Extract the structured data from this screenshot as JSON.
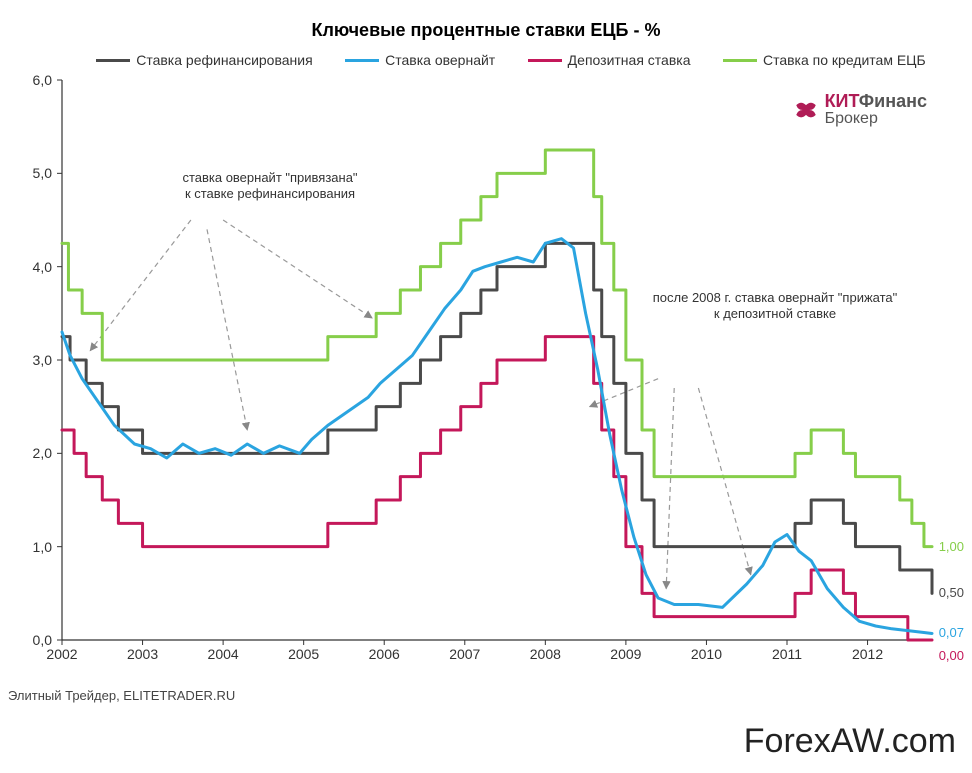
{
  "title": "Ключевые процентные ставки ЕЦБ - %",
  "legend": {
    "refi": {
      "label": "Ставка рефинансирования",
      "color": "#4a4a4a"
    },
    "overnight": {
      "label": "Ставка овернайт",
      "color": "#2aa4e0"
    },
    "deposit": {
      "label": "Депозитная ставка",
      "color": "#c4185a"
    },
    "lending": {
      "label": "Ставка по кредитам ЕЦБ",
      "color": "#86ce4a"
    }
  },
  "logo": {
    "kit": "КИТ",
    "finans": "Финанс",
    "broker": "Брокер",
    "icon_color": "#b01c56"
  },
  "annotations": {
    "a1": "ставка овернайт \"привязана\"\nк ставке рефинансирования",
    "a2": "после 2008 г. ставка овернайт \"прижата\"\nк депозитной ставке"
  },
  "end_labels": {
    "lending": {
      "text": "1,00",
      "color": "#86ce4a"
    },
    "refi": {
      "text": "0,50",
      "color": "#4a4a4a"
    },
    "overnight": {
      "text": "0,07",
      "color": "#2aa4e0"
    },
    "deposit": {
      "text": "0,00",
      "color": "#c4185a"
    }
  },
  "footer_left": "Элитный Трейдер, ELITETRADER.RU",
  "footer_right": "ForexAW.com",
  "chart": {
    "type": "line",
    "background_color": "#ffffff",
    "axis_color": "#333333",
    "grid_color": "#cccccc",
    "line_width": 3,
    "title_fontsize": 18,
    "label_fontsize": 14,
    "x_domain": [
      2002.0,
      2012.8
    ],
    "y_domain": [
      0.0,
      6.0
    ],
    "y_ticks": [
      "0,0",
      "1,0",
      "2,0",
      "3,0",
      "4,0",
      "5,0",
      "6,0"
    ],
    "y_tick_step": 1.0,
    "x_ticks": [
      "2002",
      "2003",
      "2004",
      "2005",
      "2006",
      "2007",
      "2008",
      "2009",
      "2010",
      "2011",
      "2012"
    ],
    "series": {
      "lending": {
        "color": "#86ce4a",
        "points": [
          [
            2002.0,
            4.25
          ],
          [
            2002.08,
            3.75
          ],
          [
            2002.25,
            3.5
          ],
          [
            2002.5,
            3.0
          ],
          [
            2005.0,
            3.0
          ],
          [
            2005.3,
            3.25
          ],
          [
            2005.9,
            3.5
          ],
          [
            2006.2,
            3.75
          ],
          [
            2006.45,
            4.0
          ],
          [
            2006.7,
            4.25
          ],
          [
            2006.95,
            4.5
          ],
          [
            2007.2,
            4.75
          ],
          [
            2007.4,
            5.0
          ],
          [
            2007.8,
            5.0
          ],
          [
            2008.0,
            5.25
          ],
          [
            2008.4,
            5.25
          ],
          [
            2008.6,
            4.75
          ],
          [
            2008.7,
            4.25
          ],
          [
            2008.85,
            3.75
          ],
          [
            2009.0,
            3.0
          ],
          [
            2009.2,
            2.25
          ],
          [
            2009.35,
            1.75
          ],
          [
            2010.9,
            1.75
          ],
          [
            2011.1,
            2.0
          ],
          [
            2011.3,
            2.25
          ],
          [
            2011.55,
            2.25
          ],
          [
            2011.7,
            2.0
          ],
          [
            2011.85,
            1.75
          ],
          [
            2012.3,
            1.75
          ],
          [
            2012.4,
            1.5
          ],
          [
            2012.55,
            1.25
          ],
          [
            2012.7,
            1.0
          ],
          [
            2012.8,
            1.0
          ]
        ]
      },
      "refi": {
        "color": "#4a4a4a",
        "points": [
          [
            2002.0,
            3.25
          ],
          [
            2002.1,
            3.0
          ],
          [
            2002.3,
            2.75
          ],
          [
            2002.5,
            2.5
          ],
          [
            2002.7,
            2.25
          ],
          [
            2003.0,
            2.0
          ],
          [
            2005.0,
            2.0
          ],
          [
            2005.3,
            2.25
          ],
          [
            2005.9,
            2.5
          ],
          [
            2006.2,
            2.75
          ],
          [
            2006.45,
            3.0
          ],
          [
            2006.7,
            3.25
          ],
          [
            2006.95,
            3.5
          ],
          [
            2007.2,
            3.75
          ],
          [
            2007.4,
            4.0
          ],
          [
            2007.8,
            4.0
          ],
          [
            2008.0,
            4.25
          ],
          [
            2008.4,
            4.25
          ],
          [
            2008.6,
            3.75
          ],
          [
            2008.7,
            3.25
          ],
          [
            2008.85,
            2.75
          ],
          [
            2009.0,
            2.0
          ],
          [
            2009.2,
            1.5
          ],
          [
            2009.35,
            1.0
          ],
          [
            2010.9,
            1.0
          ],
          [
            2011.1,
            1.25
          ],
          [
            2011.3,
            1.5
          ],
          [
            2011.55,
            1.5
          ],
          [
            2011.7,
            1.25
          ],
          [
            2011.85,
            1.0
          ],
          [
            2012.3,
            1.0
          ],
          [
            2012.4,
            0.75
          ],
          [
            2012.7,
            0.75
          ],
          [
            2012.8,
            0.5
          ]
        ]
      },
      "overnight": {
        "color": "#2aa4e0",
        "points": [
          [
            2002.0,
            3.3
          ],
          [
            2002.1,
            3.05
          ],
          [
            2002.25,
            2.8
          ],
          [
            2002.45,
            2.55
          ],
          [
            2002.65,
            2.3
          ],
          [
            2002.9,
            2.1
          ],
          [
            2003.1,
            2.05
          ],
          [
            2003.3,
            1.95
          ],
          [
            2003.5,
            2.1
          ],
          [
            2003.7,
            2.0
          ],
          [
            2003.9,
            2.05
          ],
          [
            2004.1,
            1.98
          ],
          [
            2004.3,
            2.1
          ],
          [
            2004.5,
            2.0
          ],
          [
            2004.7,
            2.08
          ],
          [
            2004.95,
            2.0
          ],
          [
            2005.1,
            2.15
          ],
          [
            2005.3,
            2.3
          ],
          [
            2005.55,
            2.45
          ],
          [
            2005.8,
            2.6
          ],
          [
            2005.95,
            2.75
          ],
          [
            2006.15,
            2.9
          ],
          [
            2006.35,
            3.05
          ],
          [
            2006.55,
            3.3
          ],
          [
            2006.75,
            3.55
          ],
          [
            2006.95,
            3.75
          ],
          [
            2007.1,
            3.95
          ],
          [
            2007.25,
            4.0
          ],
          [
            2007.45,
            4.05
          ],
          [
            2007.65,
            4.1
          ],
          [
            2007.85,
            4.05
          ],
          [
            2008.0,
            4.25
          ],
          [
            2008.2,
            4.3
          ],
          [
            2008.35,
            4.2
          ],
          [
            2008.5,
            3.5
          ],
          [
            2008.65,
            2.9
          ],
          [
            2008.8,
            2.2
          ],
          [
            2008.95,
            1.6
          ],
          [
            2009.1,
            1.1
          ],
          [
            2009.25,
            0.7
          ],
          [
            2009.4,
            0.45
          ],
          [
            2009.6,
            0.38
          ],
          [
            2009.9,
            0.38
          ],
          [
            2010.2,
            0.35
          ],
          [
            2010.5,
            0.6
          ],
          [
            2010.7,
            0.8
          ],
          [
            2010.85,
            1.05
          ],
          [
            2011.0,
            1.13
          ],
          [
            2011.15,
            0.95
          ],
          [
            2011.3,
            0.85
          ],
          [
            2011.5,
            0.55
          ],
          [
            2011.7,
            0.35
          ],
          [
            2011.9,
            0.2
          ],
          [
            2012.1,
            0.15
          ],
          [
            2012.3,
            0.12
          ],
          [
            2012.5,
            0.1
          ],
          [
            2012.7,
            0.08
          ],
          [
            2012.8,
            0.07
          ]
        ]
      },
      "deposit": {
        "color": "#c4185a",
        "points": [
          [
            2002.0,
            2.25
          ],
          [
            2002.15,
            2.0
          ],
          [
            2002.3,
            1.75
          ],
          [
            2002.5,
            1.5
          ],
          [
            2002.7,
            1.25
          ],
          [
            2003.0,
            1.0
          ],
          [
            2005.0,
            1.0
          ],
          [
            2005.3,
            1.25
          ],
          [
            2005.9,
            1.5
          ],
          [
            2006.2,
            1.75
          ],
          [
            2006.45,
            2.0
          ],
          [
            2006.7,
            2.25
          ],
          [
            2006.95,
            2.5
          ],
          [
            2007.2,
            2.75
          ],
          [
            2007.4,
            3.0
          ],
          [
            2007.8,
            3.0
          ],
          [
            2008.0,
            3.25
          ],
          [
            2008.4,
            3.25
          ],
          [
            2008.6,
            2.75
          ],
          [
            2008.7,
            2.25
          ],
          [
            2008.85,
            1.75
          ],
          [
            2009.0,
            1.0
          ],
          [
            2009.2,
            0.5
          ],
          [
            2009.35,
            0.25
          ],
          [
            2010.9,
            0.25
          ],
          [
            2011.1,
            0.5
          ],
          [
            2011.3,
            0.75
          ],
          [
            2011.55,
            0.75
          ],
          [
            2011.7,
            0.5
          ],
          [
            2011.85,
            0.25
          ],
          [
            2012.3,
            0.25
          ],
          [
            2012.5,
            0.0
          ],
          [
            2012.8,
            0.0
          ]
        ]
      }
    },
    "annotation_arrows": [
      {
        "from": [
          2003.6,
          4.5
        ],
        "to": [
          2002.35,
          3.1
        ]
      },
      {
        "from": [
          2003.8,
          4.4
        ],
        "to": [
          2004.3,
          2.25
        ]
      },
      {
        "from": [
          2004.0,
          4.5
        ],
        "to": [
          2005.85,
          3.45
        ]
      },
      {
        "from": [
          2009.4,
          2.8
        ],
        "to": [
          2008.55,
          2.5
        ]
      },
      {
        "from": [
          2009.6,
          2.7
        ],
        "to": [
          2009.5,
          0.55
        ]
      },
      {
        "from": [
          2009.9,
          2.7
        ],
        "to": [
          2010.55,
          0.7
        ]
      }
    ]
  }
}
